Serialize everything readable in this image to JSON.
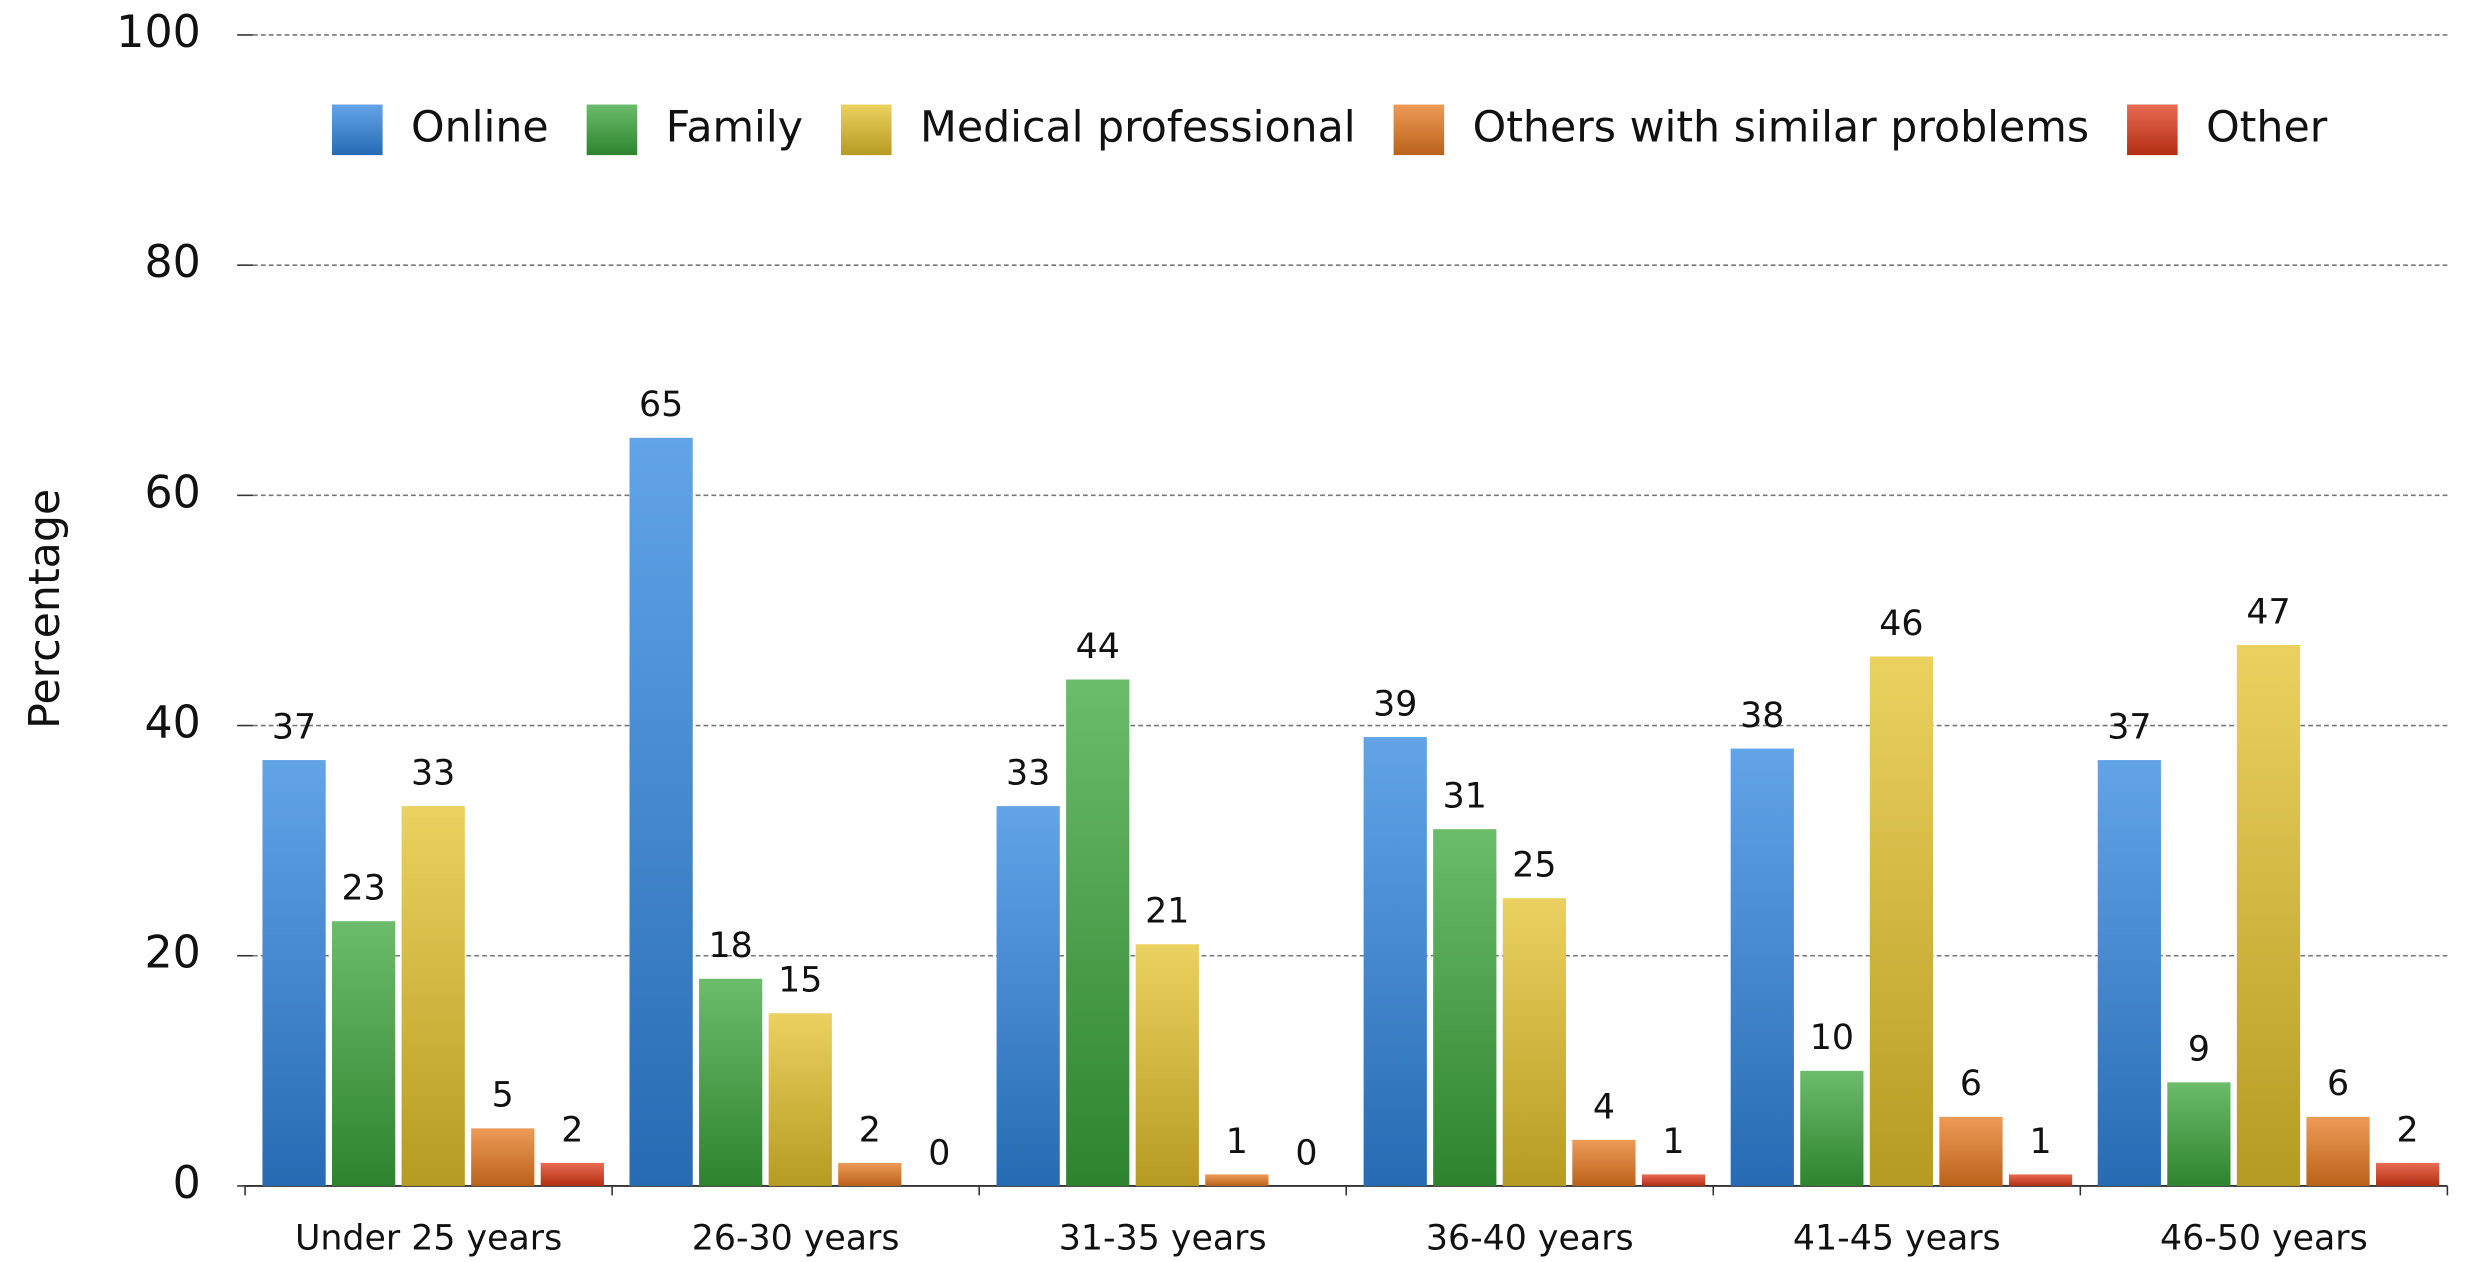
{
  "chart_data": {
    "type": "bar",
    "ylabel": "Percentage",
    "categories": [
      "Under 25 years",
      "26-30 years",
      "31-35 years",
      "36-40 years",
      "41-45 years",
      "46-50 years"
    ],
    "series": [
      {
        "name": "Online",
        "color": "#2f86e0",
        "values": [
          37,
          65,
          33,
          39,
          38,
          37
        ]
      },
      {
        "name": "Family",
        "color": "#3aa53a",
        "values": [
          23,
          18,
          44,
          31,
          10,
          9
        ]
      },
      {
        "name": "Medical professional",
        "color": "#e4c22a",
        "values": [
          33,
          15,
          21,
          25,
          46,
          47
        ]
      },
      {
        "name": "Others with similar problems",
        "color": "#e87a20",
        "values": [
          5,
          2,
          1,
          4,
          6,
          6
        ]
      },
      {
        "name": "Other",
        "color": "#e03a18",
        "values": [
          2,
          0,
          0,
          1,
          1,
          2
        ]
      }
    ],
    "ylim": [
      0,
      100
    ],
    "yticks": [
      0,
      20,
      40,
      60,
      80,
      100
    ],
    "grid": true,
    "legend": "top"
  }
}
